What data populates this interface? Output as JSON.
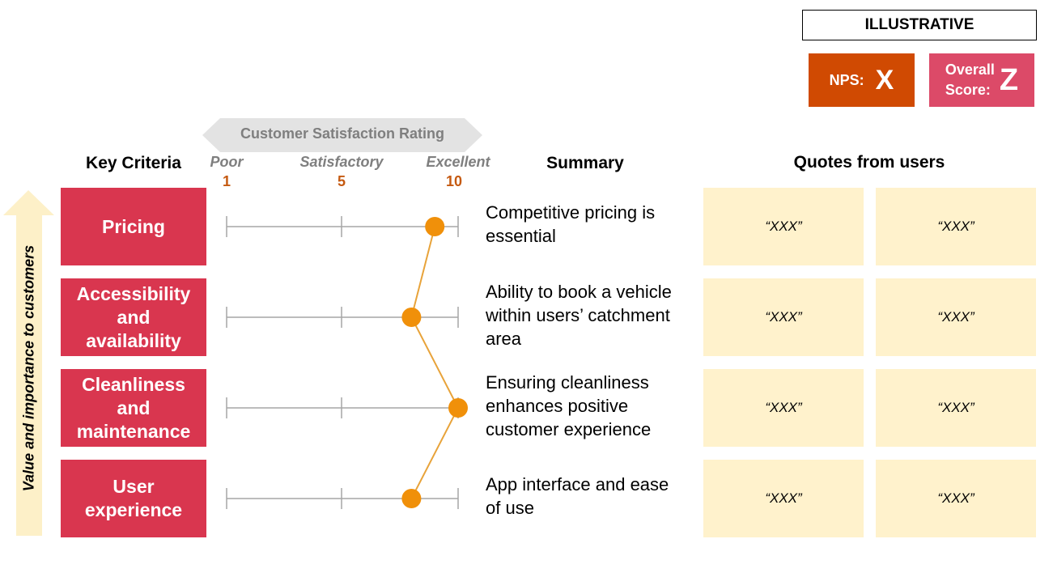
{
  "badge": "ILLUSTRATIVE",
  "nps": {
    "label": "NPS:",
    "value": "X"
  },
  "overall": {
    "label": [
      "Overall",
      "Score:"
    ],
    "value": "Z"
  },
  "headers": {
    "criteria": "Key Criteria",
    "summary": "Summary",
    "quotes": "Quotes from users"
  },
  "side_label": "Value and importance to customers",
  "scale": {
    "title": "Customer Satisfaction Rating",
    "anchors": [
      {
        "label": "Poor",
        "value": 1
      },
      {
        "label": "Satisfactory",
        "value": 5
      },
      {
        "label": "Excellent",
        "value": 10
      }
    ]
  },
  "rows": [
    {
      "criterion": "Pricing",
      "rating": 9,
      "summary": "Competitive pricing is essential",
      "quotes": [
        "“XXX”",
        "“XXX”"
      ]
    },
    {
      "criterion": "Accessibility and availability",
      "rating": 8,
      "summary": "Ability to book a vehicle within users’ catchment area",
      "quotes": [
        "“XXX”",
        "“XXX”"
      ]
    },
    {
      "criterion": "Cleanliness and maintenance",
      "rating": 10,
      "summary": "Ensuring cleanliness enhances positive customer experience",
      "quotes": [
        "“XXX”",
        "“XXX”"
      ]
    },
    {
      "criterion": "User experience",
      "rating": 8,
      "summary": "App interface and ease of use",
      "quotes": [
        "“XXX”",
        "“XXX”"
      ]
    }
  ]
}
